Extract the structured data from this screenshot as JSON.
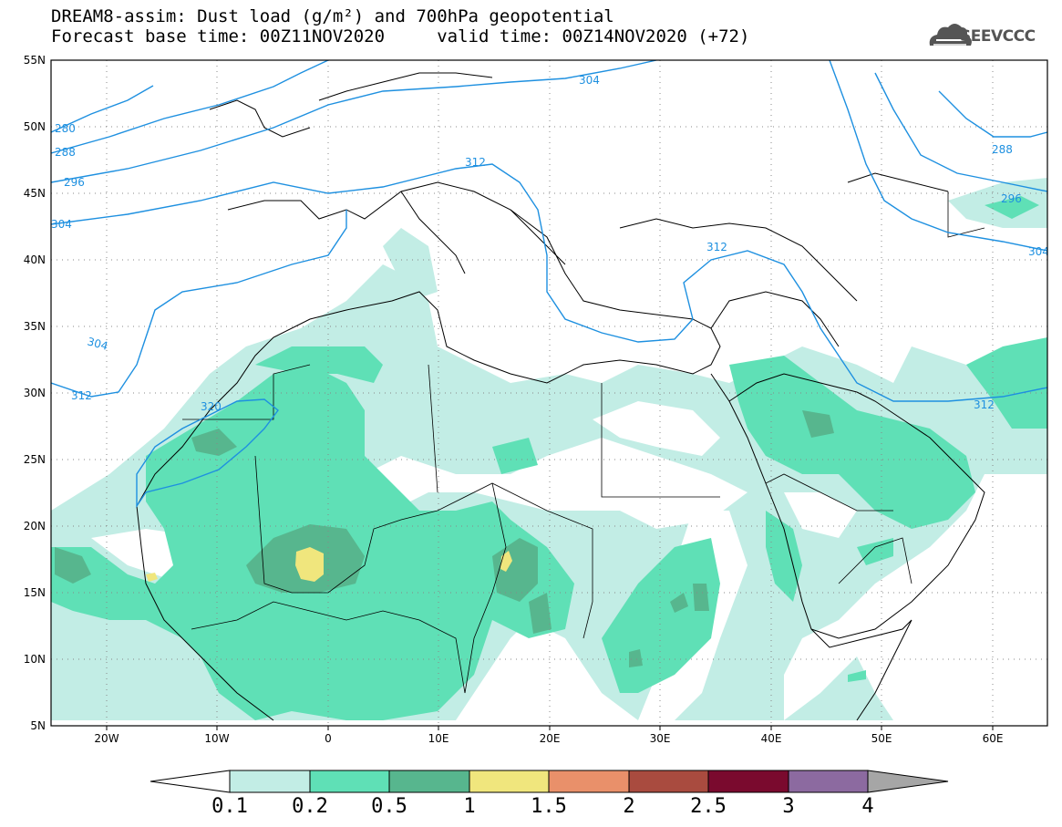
{
  "title": {
    "line1": "DREAM8-assim: Dust load (g/m²) and 700hPa geopotential",
    "line2": "Forecast base time: 00Z11NOV2020     valid time: 00Z14NOV2020 (+72)"
  },
  "logo": {
    "text": "SEEVCCC",
    "icon": "cloud-logo-icon"
  },
  "map": {
    "lon_range": [
      -25,
      65
    ],
    "lat_range": [
      5,
      55
    ],
    "x_ticks": [
      "20W",
      "10W",
      "0",
      "10E",
      "20E",
      "30E",
      "40E",
      "50E",
      "60E"
    ],
    "y_ticks": [
      "55N",
      "50N",
      "45N",
      "40N",
      "35N",
      "30N",
      "25N",
      "20N",
      "15N",
      "10N",
      "5N"
    ],
    "grid": "dotted",
    "contour_color": "#1e90e0",
    "contour_labels": [
      "280",
      "288",
      "296",
      "304",
      "304",
      "312",
      "320",
      "312",
      "312",
      "304",
      "288",
      "296",
      "304",
      "312"
    ]
  },
  "colorbar": {
    "labels": [
      "0.1",
      "0.2",
      "0.5",
      "1",
      "1.5",
      "2",
      "2.5",
      "3",
      "4"
    ],
    "colors": [
      "#c2ede5",
      "#5fe0b6",
      "#57b68e",
      "#f0e67d",
      "#e9906a",
      "#a94b3f",
      "#7a0a2e",
      "#8c6aa0"
    ]
  }
}
